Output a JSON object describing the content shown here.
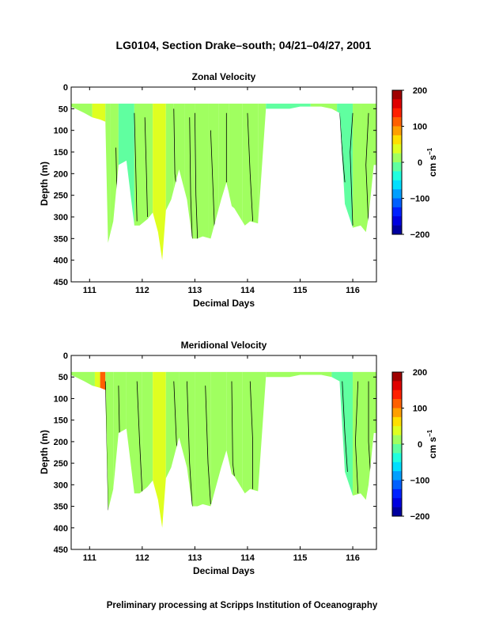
{
  "title": "LG0104, Section Drake–south; 04/21–04/27, 2001",
  "footer": "Preliminary processing at Scripps Institution of Oceanography",
  "chart_data": [
    {
      "type": "heatmap",
      "title": "Zonal Velocity",
      "xlabel": "Decimal Days",
      "ylabel": "Depth (m)",
      "xlim": [
        110.65,
        116.45
      ],
      "ylim": [
        450,
        0
      ],
      "xticks": [
        "111",
        "112",
        "113",
        "114",
        "115",
        "116"
      ],
      "yticks": [
        "0",
        "50",
        "100",
        "150",
        "200",
        "250",
        "300",
        "350",
        "400",
        "450"
      ],
      "colorbar": {
        "label": "cm s",
        "label_sup": "−1",
        "range": [
          -200,
          200
        ],
        "ticks": [
          "200",
          "100",
          "0",
          "−100",
          "−200"
        ]
      },
      "bottom_depth_profile": {
        "x": [
          110.65,
          110.9,
          111.05,
          111.2,
          111.3,
          111.35,
          111.45,
          111.55,
          111.7,
          111.85,
          111.95,
          112.1,
          112.2,
          112.3,
          112.38,
          112.45,
          112.55,
          112.7,
          112.85,
          112.95,
          113.05,
          113.15,
          113.3,
          113.4,
          113.5,
          113.6,
          113.7,
          113.75,
          113.85,
          113.95,
          114.05,
          114.2,
          114.35,
          114.6,
          114.8,
          115.0,
          115.2,
          115.4,
          115.6,
          115.75,
          115.85,
          116.0,
          116.15,
          116.25,
          116.3,
          116.4,
          116.45
        ],
        "depth": [
          45,
          60,
          70,
          75,
          80,
          360,
          310,
          180,
          170,
          320,
          320,
          305,
          290,
          335,
          400,
          285,
          260,
          190,
          260,
          350,
          350,
          345,
          350,
          305,
          260,
          220,
          275,
          280,
          300,
          320,
          310,
          315,
          50,
          50,
          50,
          45,
          45,
          45,
          50,
          60,
          270,
          325,
          320,
          335,
          300,
          180,
          180
        ]
      },
      "segments": [
        {
          "x0": 110.65,
          "x1": 111.05,
          "value": 0
        },
        {
          "x0": 111.05,
          "x1": 111.3,
          "value": 25
        },
        {
          "x0": 111.3,
          "x1": 111.4,
          "value": 10
        },
        {
          "x0": 111.4,
          "x1": 111.55,
          "value": 15
        },
        {
          "x0": 111.55,
          "x1": 111.85,
          "value": -20
        },
        {
          "x0": 111.85,
          "x1": 112.1,
          "value": 12
        },
        {
          "x0": 112.1,
          "x1": 112.2,
          "value": 5
        },
        {
          "x0": 112.2,
          "x1": 112.45,
          "value": 30
        },
        {
          "x0": 112.45,
          "x1": 112.6,
          "value": 15
        },
        {
          "x0": 112.6,
          "x1": 112.8,
          "value": 5
        },
        {
          "x0": 112.8,
          "x1": 113.0,
          "value": 20
        },
        {
          "x0": 113.0,
          "x1": 113.25,
          "value": 5
        },
        {
          "x0": 113.25,
          "x1": 113.45,
          "value": 10
        },
        {
          "x0": 113.45,
          "x1": 113.65,
          "value": 5
        },
        {
          "x0": 113.65,
          "x1": 113.9,
          "value": 15
        },
        {
          "x0": 113.9,
          "x1": 114.2,
          "value": 5
        },
        {
          "x0": 114.2,
          "x1": 114.35,
          "value": 10
        },
        {
          "x0": 114.35,
          "x1": 115.2,
          "value": -5
        },
        {
          "x0": 115.2,
          "x1": 115.7,
          "value": 5
        },
        {
          "x0": 115.7,
          "x1": 116.0,
          "value": -5
        },
        {
          "x0": 116.0,
          "x1": 116.15,
          "value": 5
        },
        {
          "x0": 116.15,
          "x1": 116.45,
          "value": 15
        }
      ],
      "contours": [
        [
          [
            111.25,
            160
          ],
          [
            111.28,
            250
          ],
          [
            111.3,
            360
          ]
        ],
        [
          [
            111.5,
            140
          ],
          [
            111.52,
            250
          ],
          [
            111.55,
            300
          ]
        ],
        [
          [
            111.85,
            60
          ],
          [
            111.88,
            200
          ],
          [
            111.9,
            310
          ]
        ],
        [
          [
            112.05,
            70
          ],
          [
            112.08,
            200
          ],
          [
            112.1,
            300
          ]
        ],
        [
          [
            112.6,
            50
          ],
          [
            112.62,
            200
          ],
          [
            112.68,
            260
          ]
        ],
        [
          [
            112.9,
            70
          ],
          [
            112.92,
            250
          ],
          [
            112.95,
            350
          ]
        ],
        [
          [
            113.0,
            60
          ],
          [
            113.02,
            250
          ],
          [
            113.05,
            350
          ]
        ],
        [
          [
            113.3,
            100
          ],
          [
            113.35,
            250
          ],
          [
            113.38,
            345
          ]
        ],
        [
          [
            113.6,
            60
          ],
          [
            113.6,
            220
          ]
        ],
        [
          [
            114.0,
            60
          ],
          [
            114.05,
            200
          ],
          [
            114.1,
            310
          ]
        ],
        [
          [
            115.75,
            60
          ],
          [
            115.8,
            150
          ],
          [
            115.85,
            220
          ]
        ],
        [
          [
            116.0,
            60
          ],
          [
            115.95,
            150
          ],
          [
            116.0,
            320
          ]
        ],
        [
          [
            116.3,
            60
          ],
          [
            116.25,
            180
          ],
          [
            116.3,
            320
          ]
        ]
      ]
    },
    {
      "type": "heatmap",
      "title": "Meridional Velocity",
      "xlabel": "Decimal Days",
      "ylabel": "Depth (m)",
      "xlim": [
        110.65,
        116.45
      ],
      "ylim": [
        450,
        0
      ],
      "xticks": [
        "111",
        "112",
        "113",
        "114",
        "115",
        "116"
      ],
      "yticks": [
        "0",
        "50",
        "100",
        "150",
        "200",
        "250",
        "300",
        "350",
        "400",
        "450"
      ],
      "colorbar": {
        "label": "cm s",
        "label_sup": "−1",
        "range": [
          -200,
          200
        ],
        "ticks": [
          "200",
          "100",
          "0",
          "−100",
          "−200"
        ]
      },
      "bottom_depth_profile": {
        "x": [
          110.65,
          110.9,
          111.05,
          111.2,
          111.3,
          111.35,
          111.45,
          111.55,
          111.7,
          111.85,
          111.95,
          112.1,
          112.2,
          112.3,
          112.38,
          112.45,
          112.55,
          112.7,
          112.85,
          112.95,
          113.05,
          113.15,
          113.3,
          113.4,
          113.5,
          113.6,
          113.7,
          113.75,
          113.85,
          113.95,
          114.05,
          114.2,
          114.35,
          114.6,
          114.8,
          115.0,
          115.2,
          115.4,
          115.6,
          115.75,
          115.85,
          116.0,
          116.15,
          116.25,
          116.3,
          116.4,
          116.45
        ],
        "depth": [
          45,
          60,
          70,
          75,
          80,
          360,
          310,
          180,
          170,
          320,
          320,
          305,
          290,
          335,
          400,
          285,
          260,
          190,
          260,
          350,
          350,
          345,
          350,
          305,
          260,
          220,
          275,
          280,
          300,
          320,
          310,
          315,
          50,
          50,
          50,
          45,
          45,
          45,
          50,
          60,
          270,
          325,
          320,
          335,
          300,
          180,
          180
        ]
      },
      "segments": [
        {
          "x0": 110.65,
          "x1": 111.1,
          "value": 5
        },
        {
          "x0": 111.1,
          "x1": 111.2,
          "value": 40
        },
        {
          "x0": 111.2,
          "x1": 111.3,
          "value": 120
        },
        {
          "x0": 111.3,
          "x1": 111.45,
          "value": 20
        },
        {
          "x0": 111.45,
          "x1": 111.7,
          "value": 15
        },
        {
          "x0": 111.7,
          "x1": 112.0,
          "value": 20
        },
        {
          "x0": 112.0,
          "x1": 112.2,
          "value": 10
        },
        {
          "x0": 112.2,
          "x1": 112.45,
          "value": 25
        },
        {
          "x0": 112.45,
          "x1": 112.7,
          "value": 10
        },
        {
          "x0": 112.7,
          "x1": 113.0,
          "value": 5
        },
        {
          "x0": 113.0,
          "x1": 113.3,
          "value": 10
        },
        {
          "x0": 113.3,
          "x1": 113.6,
          "value": 5
        },
        {
          "x0": 113.6,
          "x1": 113.9,
          "value": 0
        },
        {
          "x0": 113.9,
          "x1": 114.35,
          "value": 15
        },
        {
          "x0": 114.35,
          "x1": 115.6,
          "value": 5
        },
        {
          "x0": 115.6,
          "x1": 116.0,
          "value": -5
        },
        {
          "x0": 116.0,
          "x1": 116.45,
          "value": 0
        }
      ],
      "contours": [
        [
          [
            111.3,
            60
          ],
          [
            111.32,
            200
          ],
          [
            111.35,
            360
          ]
        ],
        [
          [
            111.55,
            70
          ],
          [
            111.58,
            250
          ],
          [
            111.6,
            300
          ]
        ],
        [
          [
            111.9,
            60
          ],
          [
            111.95,
            200
          ],
          [
            112.0,
            320
          ]
        ],
        [
          [
            112.6,
            60
          ],
          [
            112.65,
            200
          ],
          [
            112.7,
            260
          ]
        ],
        [
          [
            112.85,
            60
          ],
          [
            112.9,
            250
          ],
          [
            112.95,
            350
          ]
        ],
        [
          [
            113.2,
            70
          ],
          [
            113.25,
            250
          ],
          [
            113.3,
            345
          ]
        ],
        [
          [
            113.7,
            60
          ],
          [
            113.72,
            250
          ],
          [
            113.75,
            280
          ]
        ],
        [
          [
            114.05,
            60
          ],
          [
            114.1,
            200
          ],
          [
            114.1,
            310
          ]
        ],
        [
          [
            115.8,
            60
          ],
          [
            115.85,
            180
          ],
          [
            115.9,
            270
          ]
        ],
        [
          [
            116.1,
            60
          ],
          [
            116.05,
            200
          ],
          [
            116.1,
            320
          ]
        ],
        [
          [
            116.3,
            60
          ],
          [
            116.3,
            200
          ],
          [
            116.35,
            300
          ]
        ]
      ]
    }
  ]
}
